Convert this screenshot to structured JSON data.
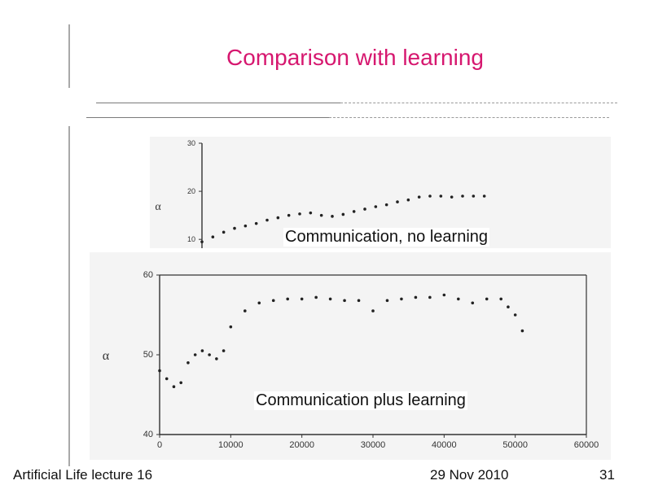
{
  "slide": {
    "title": "Comparison with learning",
    "footer_left": "Artificial Life lecture 16",
    "footer_center": "29 Nov 2010",
    "footer_right": "31"
  },
  "colors": {
    "title": "#d6176f",
    "marks": "#222222"
  },
  "chart_data": [
    {
      "type": "scatter",
      "annotation": "Communication, no learning",
      "ylabel": "α",
      "ylim": [
        8,
        30
      ],
      "yticks": [
        "30",
        "20",
        "10"
      ],
      "x": [
        0,
        2000,
        4000,
        6000,
        8000,
        10000,
        12000,
        14000,
        16000,
        18000,
        20000,
        22000,
        24000,
        26000,
        28000,
        30000,
        32000,
        34000,
        36000,
        38000,
        40000,
        42000,
        44000,
        46000,
        48000,
        50000,
        52000
      ],
      "values": [
        9.5,
        10.5,
        11.5,
        12.3,
        12.8,
        13.3,
        14.0,
        14.5,
        15.0,
        15.3,
        15.5,
        15.0,
        14.8,
        15.2,
        15.8,
        16.3,
        16.8,
        17.2,
        17.8,
        18.2,
        18.8,
        19.0,
        19.0,
        18.8,
        19.0,
        19.0,
        19.0
      ]
    },
    {
      "type": "scatter",
      "annotation": "Communication plus learning",
      "ylabel": "α",
      "ylim": [
        40,
        60
      ],
      "xlim": [
        0,
        60000
      ],
      "yticks": [
        "60",
        "50",
        "40"
      ],
      "xticks": [
        "0",
        "10000",
        "20000",
        "30000",
        "40000",
        "50000",
        "60000"
      ],
      "x": [
        0,
        1000,
        2000,
        3000,
        4000,
        5000,
        6000,
        7000,
        8000,
        9000,
        10000,
        12000,
        14000,
        16000,
        18000,
        20000,
        22000,
        24000,
        26000,
        28000,
        30000,
        32000,
        34000,
        36000,
        38000,
        40000,
        42000,
        44000,
        46000,
        48000,
        49000,
        50000,
        51000
      ],
      "values": [
        48,
        47,
        46,
        46.5,
        49,
        50,
        50.5,
        50,
        49.5,
        50.5,
        53.5,
        55.5,
        56.5,
        56.8,
        57,
        57,
        57.2,
        57,
        56.8,
        56.8,
        55.5,
        56.8,
        57,
        57.2,
        57.2,
        57.5,
        57,
        56.5,
        57,
        57,
        56,
        55,
        53
      ]
    }
  ]
}
